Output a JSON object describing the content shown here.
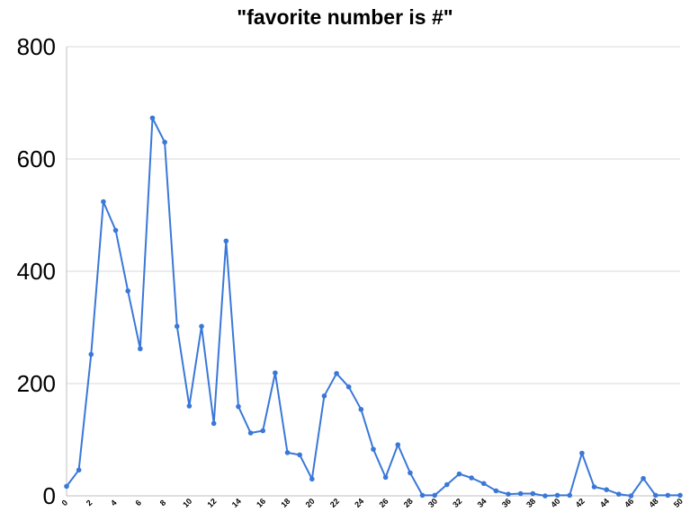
{
  "chart_data": {
    "type": "line",
    "title": "\"favorite number is #\"",
    "xlabel": "",
    "ylabel": "",
    "xlim": [
      0,
      50
    ],
    "ylim": [
      0,
      800
    ],
    "y_ticks": [
      0,
      200,
      400,
      600,
      800
    ],
    "x_ticks": [
      0,
      2,
      4,
      6,
      8,
      10,
      12,
      14,
      16,
      18,
      20,
      22,
      24,
      26,
      28,
      30,
      32,
      34,
      36,
      38,
      40,
      42,
      44,
      46,
      48,
      50
    ],
    "grid": "horizontal",
    "legend": "none",
    "line_color": "#3a78d8",
    "series": [
      {
        "x": [
          0,
          1,
          2,
          3,
          4,
          5,
          6,
          7,
          8,
          9,
          10,
          11,
          12,
          13,
          14,
          15,
          16,
          17,
          18,
          19,
          20,
          21,
          22,
          23,
          24,
          25,
          26,
          27,
          28,
          29,
          30,
          31,
          32,
          33,
          34,
          35,
          36,
          37,
          38,
          39,
          40,
          41,
          42,
          43,
          44,
          45,
          46,
          47,
          48,
          49,
          50
        ],
        "values": [
          17,
          46,
          252,
          524,
          473,
          365,
          262,
          673,
          630,
          302,
          160,
          302,
          129,
          454,
          159,
          112,
          116,
          219,
          77,
          73,
          30,
          178,
          218,
          194,
          154,
          83,
          33,
          91,
          41,
          1,
          1,
          20,
          39,
          32,
          22,
          9,
          3,
          4,
          4,
          0,
          1,
          1,
          76,
          16,
          11,
          3,
          0,
          31,
          1,
          1,
          1
        ]
      }
    ]
  }
}
